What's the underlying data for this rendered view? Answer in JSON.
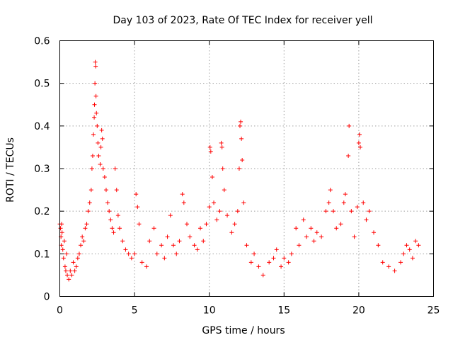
{
  "chart_data": {
    "type": "scatter",
    "title": "Day 103 of 2023, Rate Of TEC Index for receiver yell",
    "xlabel": "GPS time / hours",
    "ylabel": "ROTI / TECUs",
    "xlim": [
      0,
      25
    ],
    "ylim": [
      0,
      0.6
    ],
    "xticks": [
      "0",
      "5",
      "10",
      "15",
      "20",
      "25"
    ],
    "yticks": [
      "0",
      "0.1",
      "0.2",
      "0.3",
      "0.4",
      "0.5",
      "0.6"
    ],
    "grid": true,
    "marker": "+",
    "color": "#ff0000",
    "series": [
      {
        "points": [
          [
            0.0,
            0.17
          ],
          [
            0.05,
            0.16
          ],
          [
            0.08,
            0.14
          ],
          [
            0.1,
            0.12
          ],
          [
            0.12,
            0.17
          ],
          [
            0.15,
            0.15
          ],
          [
            0.2,
            0.11
          ],
          [
            0.25,
            0.09
          ],
          [
            0.3,
            0.13
          ],
          [
            0.35,
            0.07
          ],
          [
            0.4,
            0.06
          ],
          [
            0.45,
            0.1
          ],
          [
            0.5,
            0.05
          ],
          [
            0.6,
            0.04
          ],
          [
            0.7,
            0.06
          ],
          [
            0.8,
            0.05
          ],
          [
            0.9,
            0.08
          ],
          [
            1.0,
            0.06
          ],
          [
            1.1,
            0.07
          ],
          [
            1.2,
            0.09
          ],
          [
            1.3,
            0.1
          ],
          [
            1.4,
            0.12
          ],
          [
            1.5,
            0.14
          ],
          [
            1.6,
            0.13
          ],
          [
            1.7,
            0.16
          ],
          [
            1.8,
            0.17
          ],
          [
            1.9,
            0.2
          ],
          [
            2.0,
            0.22
          ],
          [
            2.1,
            0.25
          ],
          [
            2.15,
            0.3
          ],
          [
            2.2,
            0.33
          ],
          [
            2.25,
            0.38
          ],
          [
            2.3,
            0.42
          ],
          [
            2.32,
            0.45
          ],
          [
            2.35,
            0.5
          ],
          [
            2.37,
            0.55
          ],
          [
            2.4,
            0.54
          ],
          [
            2.42,
            0.47
          ],
          [
            2.45,
            0.43
          ],
          [
            2.5,
            0.4
          ],
          [
            2.55,
            0.36
          ],
          [
            2.6,
            0.33
          ],
          [
            2.7,
            0.31
          ],
          [
            2.75,
            0.35
          ],
          [
            2.8,
            0.39
          ],
          [
            2.85,
            0.37
          ],
          [
            2.9,
            0.3
          ],
          [
            3.0,
            0.28
          ],
          [
            3.1,
            0.25
          ],
          [
            3.2,
            0.22
          ],
          [
            3.3,
            0.2
          ],
          [
            3.4,
            0.18
          ],
          [
            3.5,
            0.16
          ],
          [
            3.6,
            0.15
          ],
          [
            3.7,
            0.3
          ],
          [
            3.8,
            0.25
          ],
          [
            3.9,
            0.19
          ],
          [
            4.0,
            0.16
          ],
          [
            4.2,
            0.13
          ],
          [
            4.4,
            0.11
          ],
          [
            4.6,
            0.1
          ],
          [
            4.8,
            0.09
          ],
          [
            5.0,
            0.1
          ],
          [
            5.1,
            0.24
          ],
          [
            5.2,
            0.21
          ],
          [
            5.3,
            0.17
          ],
          [
            5.5,
            0.08
          ],
          [
            5.8,
            0.07
          ],
          [
            6.0,
            0.13
          ],
          [
            6.3,
            0.16
          ],
          [
            6.5,
            0.1
          ],
          [
            6.8,
            0.12
          ],
          [
            7.0,
            0.09
          ],
          [
            7.2,
            0.14
          ],
          [
            7.4,
            0.19
          ],
          [
            7.6,
            0.12
          ],
          [
            7.8,
            0.1
          ],
          [
            8.0,
            0.13
          ],
          [
            8.2,
            0.24
          ],
          [
            8.3,
            0.22
          ],
          [
            8.5,
            0.17
          ],
          [
            8.7,
            0.14
          ],
          [
            9.0,
            0.12
          ],
          [
            9.2,
            0.11
          ],
          [
            9.4,
            0.16
          ],
          [
            9.6,
            0.13
          ],
          [
            9.8,
            0.17
          ],
          [
            10.0,
            0.21
          ],
          [
            10.05,
            0.35
          ],
          [
            10.1,
            0.34
          ],
          [
            10.2,
            0.28
          ],
          [
            10.3,
            0.22
          ],
          [
            10.5,
            0.18
          ],
          [
            10.7,
            0.2
          ],
          [
            10.8,
            0.36
          ],
          [
            10.85,
            0.35
          ],
          [
            10.9,
            0.3
          ],
          [
            11.0,
            0.25
          ],
          [
            11.2,
            0.19
          ],
          [
            11.5,
            0.15
          ],
          [
            11.7,
            0.17
          ],
          [
            11.9,
            0.2
          ],
          [
            12.0,
            0.3
          ],
          [
            12.05,
            0.4
          ],
          [
            12.1,
            0.41
          ],
          [
            12.15,
            0.37
          ],
          [
            12.2,
            0.32
          ],
          [
            12.3,
            0.22
          ],
          [
            12.5,
            0.12
          ],
          [
            12.8,
            0.08
          ],
          [
            13.0,
            0.1
          ],
          [
            13.3,
            0.07
          ],
          [
            13.6,
            0.05
          ],
          [
            14.0,
            0.08
          ],
          [
            14.3,
            0.09
          ],
          [
            14.5,
            0.11
          ],
          [
            14.8,
            0.07
          ],
          [
            15.0,
            0.09
          ],
          [
            15.3,
            0.08
          ],
          [
            15.5,
            0.1
          ],
          [
            15.8,
            0.16
          ],
          [
            16.0,
            0.12
          ],
          [
            16.3,
            0.18
          ],
          [
            16.5,
            0.14
          ],
          [
            16.8,
            0.16
          ],
          [
            17.0,
            0.13
          ],
          [
            17.2,
            0.15
          ],
          [
            17.5,
            0.14
          ],
          [
            17.8,
            0.2
          ],
          [
            18.0,
            0.22
          ],
          [
            18.1,
            0.25
          ],
          [
            18.3,
            0.2
          ],
          [
            18.5,
            0.16
          ],
          [
            18.8,
            0.17
          ],
          [
            19.0,
            0.22
          ],
          [
            19.1,
            0.24
          ],
          [
            19.3,
            0.33
          ],
          [
            19.35,
            0.4
          ],
          [
            19.5,
            0.2
          ],
          [
            19.7,
            0.14
          ],
          [
            19.9,
            0.21
          ],
          [
            20.0,
            0.36
          ],
          [
            20.05,
            0.38
          ],
          [
            20.1,
            0.35
          ],
          [
            20.3,
            0.22
          ],
          [
            20.5,
            0.18
          ],
          [
            20.7,
            0.2
          ],
          [
            21.0,
            0.15
          ],
          [
            21.3,
            0.12
          ],
          [
            21.6,
            0.08
          ],
          [
            22.0,
            0.07
          ],
          [
            22.4,
            0.06
          ],
          [
            22.8,
            0.08
          ],
          [
            23.0,
            0.1
          ],
          [
            23.2,
            0.12
          ],
          [
            23.4,
            0.11
          ],
          [
            23.6,
            0.09
          ],
          [
            23.8,
            0.13
          ],
          [
            24.0,
            0.12
          ]
        ]
      }
    ]
  }
}
